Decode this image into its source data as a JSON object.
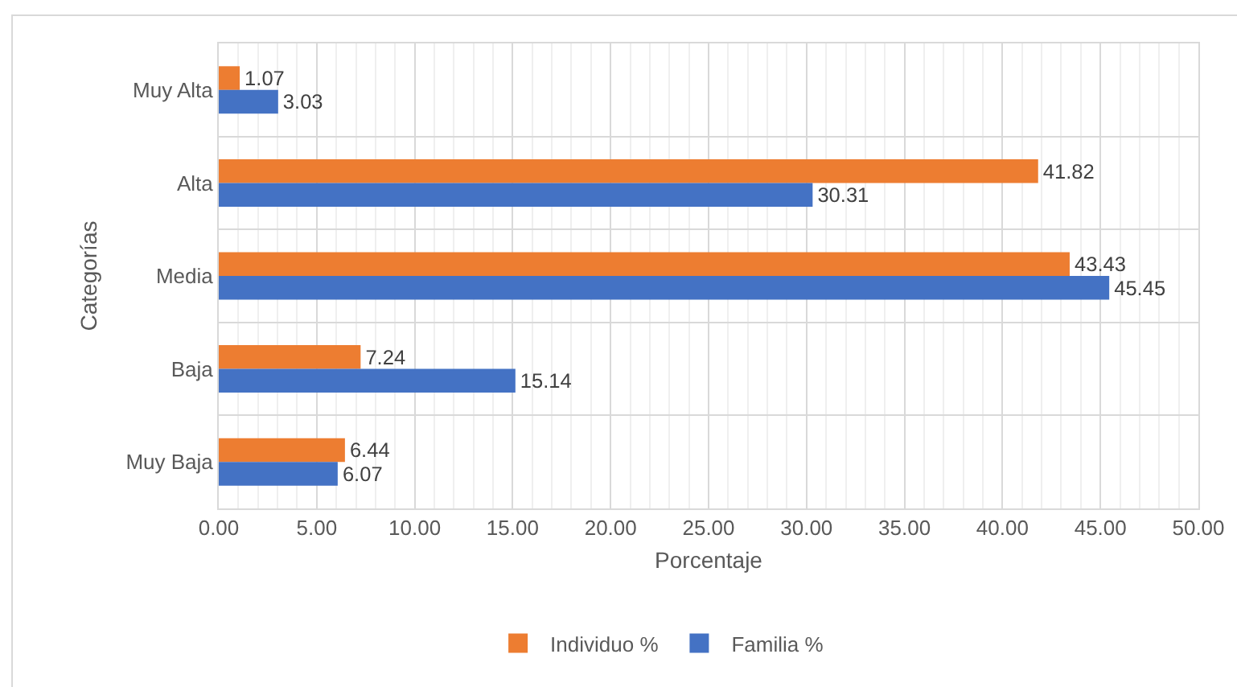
{
  "chart_data": {
    "type": "bar",
    "orientation": "horizontal",
    "xlabel": "Porcentaje",
    "ylabel": "Categorías",
    "categories": [
      "Muy Alta",
      "Alta",
      "Media",
      "Baja",
      "Muy Baja"
    ],
    "series": [
      {
        "name": "Individuo %",
        "color": "#ed7d31",
        "values": [
          1.07,
          41.82,
          43.43,
          7.24,
          6.44
        ]
      },
      {
        "name": "Familia %",
        "color": "#4472c4",
        "values": [
          3.03,
          30.31,
          45.45,
          15.14,
          6.07
        ]
      }
    ],
    "xlim": [
      0,
      50
    ],
    "xticks": [
      {
        "value": 0,
        "label": "0.00"
      },
      {
        "value": 5,
        "label": "5.00"
      },
      {
        "value": 10,
        "label": "10.00"
      },
      {
        "value": 15,
        "label": "15.00"
      },
      {
        "value": 20,
        "label": "20.00"
      },
      {
        "value": 25,
        "label": "25.00"
      },
      {
        "value": 30,
        "label": "30.00"
      },
      {
        "value": 35,
        "label": "35.00"
      },
      {
        "value": 40,
        "label": "40.00"
      },
      {
        "value": 45,
        "label": "45.00"
      },
      {
        "value": 50,
        "label": "50.00"
      }
    ],
    "grid": true,
    "legend": "bottom",
    "data_labels": true
  }
}
